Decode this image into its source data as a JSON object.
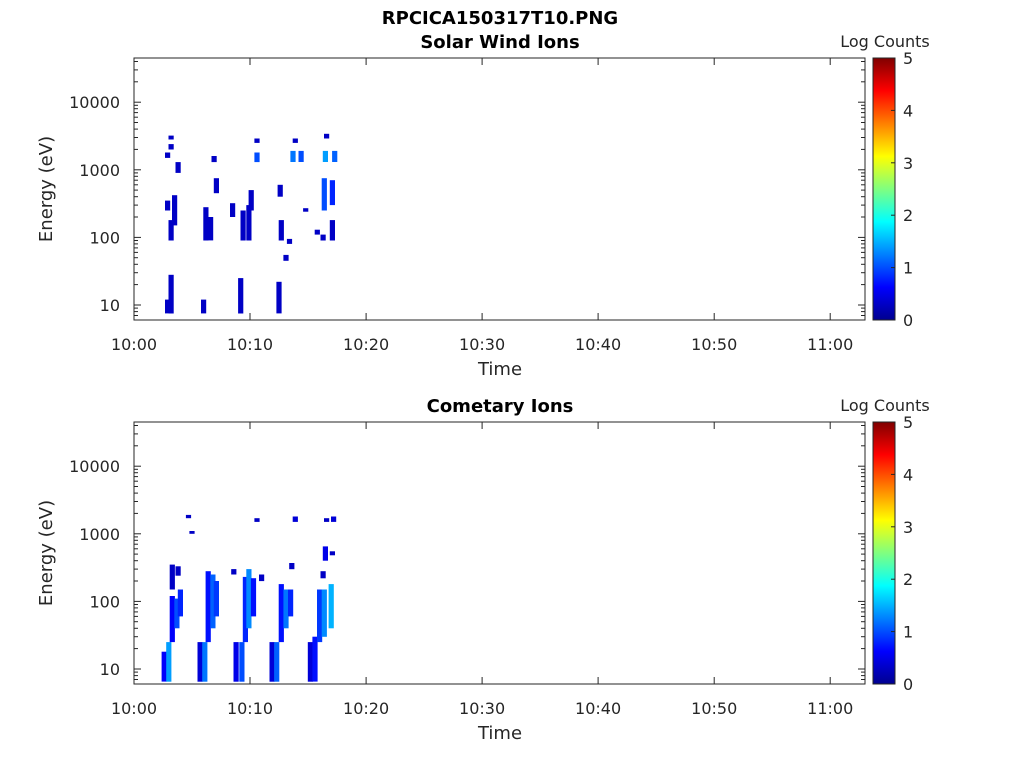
{
  "figure_title": "RPCICA150317T10.PNG",
  "colors": {
    "colormap": [
      "#00008f",
      "#0000ff",
      "#0080ff",
      "#00ffff",
      "#80ff80",
      "#ffff00",
      "#ff8000",
      "#ff0000",
      "#800000"
    ]
  },
  "chart_data": [
    {
      "type": "heatmap",
      "title": "Solar Wind Ions",
      "xlabel": "Time",
      "ylabel": "Energy (eV)",
      "x_ticks": [
        "10:00",
        "10:10",
        "10:20",
        "10:30",
        "10:40",
        "10:50",
        "11:00"
      ],
      "xlim_minutes": [
        0,
        63
      ],
      "y_ticks": [
        "10",
        "100",
        "1000",
        "10000"
      ],
      "y_scale": "log",
      "ylim": [
        6,
        45000
      ],
      "colorbar": {
        "label": "Log Counts",
        "ticks": [
          "0",
          "1",
          "2",
          "3",
          "4",
          "5"
        ],
        "range": [
          0,
          5
        ]
      },
      "cells": [
        {
          "t": 2.9,
          "e_lo": 7.5,
          "e_hi": 12,
          "v": 0.3
        },
        {
          "t": 3.2,
          "e_lo": 7.5,
          "e_hi": 28,
          "v": 0.3
        },
        {
          "t": 3.2,
          "e_lo": 90,
          "e_hi": 180,
          "v": 0.3
        },
        {
          "t": 3.5,
          "e_lo": 150,
          "e_hi": 420,
          "v": 0.3
        },
        {
          "t": 2.9,
          "e_lo": 250,
          "e_hi": 350,
          "v": 0.3
        },
        {
          "t": 2.9,
          "e_lo": 1500,
          "e_hi": 1800,
          "v": 0.3
        },
        {
          "t": 3.2,
          "e_lo": 2000,
          "e_hi": 2400,
          "v": 0.3
        },
        {
          "t": 3.2,
          "e_lo": 2800,
          "e_hi": 3200,
          "v": 0.3
        },
        {
          "t": 3.8,
          "e_lo": 900,
          "e_hi": 1300,
          "v": 0.3
        },
        {
          "t": 6.0,
          "e_lo": 7.5,
          "e_hi": 12,
          "v": 0.3
        },
        {
          "t": 6.2,
          "e_lo": 90,
          "e_hi": 280,
          "v": 0.3
        },
        {
          "t": 6.6,
          "e_lo": 90,
          "e_hi": 200,
          "v": 0.3
        },
        {
          "t": 6.9,
          "e_lo": 1300,
          "e_hi": 1600,
          "v": 0.3
        },
        {
          "t": 7.1,
          "e_lo": 450,
          "e_hi": 750,
          "v": 0.3
        },
        {
          "t": 8.5,
          "e_lo": 200,
          "e_hi": 320,
          "v": 0.3
        },
        {
          "t": 9.2,
          "e_lo": 7.5,
          "e_hi": 25,
          "v": 0.3
        },
        {
          "t": 9.4,
          "e_lo": 90,
          "e_hi": 250,
          "v": 0.3
        },
        {
          "t": 9.9,
          "e_lo": 90,
          "e_hi": 300,
          "v": 0.3
        },
        {
          "t": 10.1,
          "e_lo": 250,
          "e_hi": 500,
          "v": 0.3
        },
        {
          "t": 10.6,
          "e_lo": 1300,
          "e_hi": 1800,
          "v": 1.0
        },
        {
          "t": 10.6,
          "e_lo": 2500,
          "e_hi": 2900,
          "v": 0.3
        },
        {
          "t": 12.5,
          "e_lo": 7.5,
          "e_hi": 22,
          "v": 0.3
        },
        {
          "t": 12.7,
          "e_lo": 90,
          "e_hi": 180,
          "v": 0.3
        },
        {
          "t": 12.6,
          "e_lo": 400,
          "e_hi": 600,
          "v": 0.3
        },
        {
          "t": 13.1,
          "e_lo": 45,
          "e_hi": 55,
          "v": 0.3
        },
        {
          "t": 13.4,
          "e_lo": 80,
          "e_hi": 95,
          "v": 0.3
        },
        {
          "t": 13.7,
          "e_lo": 1300,
          "e_hi": 1900,
          "v": 1.2
        },
        {
          "t": 13.9,
          "e_lo": 2500,
          "e_hi": 2900,
          "v": 0.3
        },
        {
          "t": 14.4,
          "e_lo": 1300,
          "e_hi": 1900,
          "v": 1.0
        },
        {
          "t": 14.8,
          "e_lo": 240,
          "e_hi": 270,
          "v": 0.3
        },
        {
          "t": 15.8,
          "e_lo": 110,
          "e_hi": 130,
          "v": 0.3
        },
        {
          "t": 16.3,
          "e_lo": 90,
          "e_hi": 110,
          "v": 0.3
        },
        {
          "t": 16.4,
          "e_lo": 250,
          "e_hi": 750,
          "v": 1.0
        },
        {
          "t": 16.5,
          "e_lo": 1300,
          "e_hi": 1900,
          "v": 1.4
        },
        {
          "t": 16.6,
          "e_lo": 2900,
          "e_hi": 3400,
          "v": 0.3
        },
        {
          "t": 17.1,
          "e_lo": 90,
          "e_hi": 180,
          "v": 0.3
        },
        {
          "t": 17.1,
          "e_lo": 300,
          "e_hi": 700,
          "v": 0.8
        },
        {
          "t": 17.3,
          "e_lo": 1300,
          "e_hi": 1900,
          "v": 1.1
        }
      ]
    },
    {
      "type": "heatmap",
      "title": "Cometary Ions",
      "xlabel": "Time",
      "ylabel": "Energy (eV)",
      "x_ticks": [
        "10:00",
        "10:10",
        "10:20",
        "10:30",
        "10:40",
        "10:50",
        "11:00"
      ],
      "xlim_minutes": [
        0,
        63
      ],
      "y_ticks": [
        "10",
        "100",
        "1000",
        "10000"
      ],
      "y_scale": "log",
      "ylim": [
        6,
        45000
      ],
      "colorbar": {
        "label": "Log Counts",
        "ticks": [
          "0",
          "1",
          "2",
          "3",
          "4",
          "5"
        ],
        "range": [
          0,
          5
        ]
      },
      "cells": [
        {
          "t": 2.6,
          "e_lo": 6.5,
          "e_hi": 18,
          "v": 0.6
        },
        {
          "t": 3.0,
          "e_lo": 6.5,
          "e_hi": 25,
          "v": 1.4
        },
        {
          "t": 3.3,
          "e_lo": 25,
          "e_hi": 120,
          "v": 0.6
        },
        {
          "t": 3.3,
          "e_lo": 150,
          "e_hi": 350,
          "v": 0.3
        },
        {
          "t": 3.7,
          "e_lo": 40,
          "e_hi": 110,
          "v": 1.0
        },
        {
          "t": 3.8,
          "e_lo": 240,
          "e_hi": 330,
          "v": 0.3
        },
        {
          "t": 4.0,
          "e_lo": 60,
          "e_hi": 150,
          "v": 0.8
        },
        {
          "t": 4.7,
          "e_lo": 1700,
          "e_hi": 1900,
          "v": 0.3
        },
        {
          "t": 5.0,
          "e_lo": 1000,
          "e_hi": 1100,
          "v": 0.3
        },
        {
          "t": 5.7,
          "e_lo": 6.5,
          "e_hi": 25,
          "v": 0.4
        },
        {
          "t": 6.1,
          "e_lo": 6.5,
          "e_hi": 25,
          "v": 1.2
        },
        {
          "t": 6.4,
          "e_lo": 25,
          "e_hi": 280,
          "v": 0.7
        },
        {
          "t": 6.8,
          "e_lo": 40,
          "e_hi": 250,
          "v": 1.1
        },
        {
          "t": 7.1,
          "e_lo": 60,
          "e_hi": 200,
          "v": 0.9
        },
        {
          "t": 8.6,
          "e_lo": 250,
          "e_hi": 300,
          "v": 0.3
        },
        {
          "t": 8.8,
          "e_lo": 6.5,
          "e_hi": 25,
          "v": 0.5
        },
        {
          "t": 9.3,
          "e_lo": 6.5,
          "e_hi": 25,
          "v": 1.0
        },
        {
          "t": 9.6,
          "e_lo": 25,
          "e_hi": 230,
          "v": 0.8
        },
        {
          "t": 9.9,
          "e_lo": 40,
          "e_hi": 300,
          "v": 1.3
        },
        {
          "t": 10.3,
          "e_lo": 60,
          "e_hi": 220,
          "v": 0.7
        },
        {
          "t": 10.6,
          "e_lo": 1500,
          "e_hi": 1700,
          "v": 0.3
        },
        {
          "t": 11.0,
          "e_lo": 200,
          "e_hi": 250,
          "v": 0.3
        },
        {
          "t": 11.9,
          "e_lo": 6.5,
          "e_hi": 25,
          "v": 0.4
        },
        {
          "t": 12.3,
          "e_lo": 6.5,
          "e_hi": 25,
          "v": 1.1
        },
        {
          "t": 12.7,
          "e_lo": 25,
          "e_hi": 180,
          "v": 0.7
        },
        {
          "t": 13.1,
          "e_lo": 40,
          "e_hi": 150,
          "v": 1.2
        },
        {
          "t": 13.5,
          "e_lo": 60,
          "e_hi": 150,
          "v": 0.8
        },
        {
          "t": 13.6,
          "e_lo": 300,
          "e_hi": 370,
          "v": 0.3
        },
        {
          "t": 13.9,
          "e_lo": 1500,
          "e_hi": 1800,
          "v": 0.4
        },
        {
          "t": 15.2,
          "e_lo": 6.5,
          "e_hi": 25,
          "v": 0.4
        },
        {
          "t": 15.6,
          "e_lo": 6.5,
          "e_hi": 30,
          "v": 0.7
        },
        {
          "t": 16.0,
          "e_lo": 25,
          "e_hi": 150,
          "v": 0.9
        },
        {
          "t": 16.3,
          "e_lo": 220,
          "e_hi": 280,
          "v": 0.3
        },
        {
          "t": 16.4,
          "e_lo": 30,
          "e_hi": 150,
          "v": 1.3
        },
        {
          "t": 16.5,
          "e_lo": 400,
          "e_hi": 650,
          "v": 0.5
        },
        {
          "t": 16.6,
          "e_lo": 1500,
          "e_hi": 1700,
          "v": 0.3
        },
        {
          "t": 17.0,
          "e_lo": 40,
          "e_hi": 180,
          "v": 1.5
        },
        {
          "t": 17.1,
          "e_lo": 480,
          "e_hi": 550,
          "v": 0.3
        },
        {
          "t": 17.2,
          "e_lo": 1500,
          "e_hi": 1800,
          "v": 0.4
        }
      ]
    }
  ]
}
